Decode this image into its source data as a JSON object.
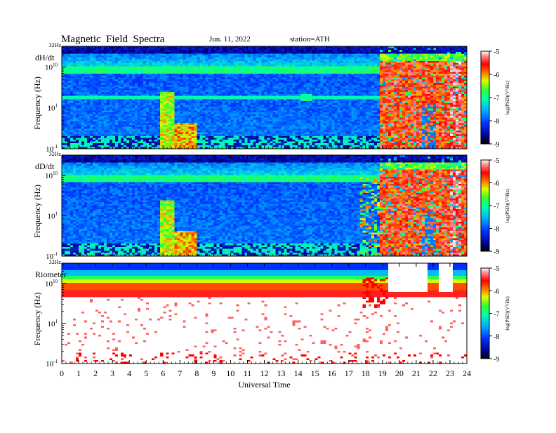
{
  "header": {
    "title": "Magnetic  Field  Spectra",
    "date": "Jun. 11, 2022",
    "station": "station=ATH"
  },
  "colors": {
    "background": "#ffffff",
    "axis": "#000000"
  },
  "chart_data": [
    {
      "type": "heatmap",
      "title": "dH/dt",
      "ylabel": "Frequency (Hz)",
      "xlabel": "",
      "xlim": [
        0,
        24
      ],
      "ylim_hz": [
        0.1,
        32
      ],
      "y_scale": "log",
      "y_top_label": "32Hz",
      "y_tick_labels": [
        "10",
        "1",
        "-1"
      ],
      "colorbar": {
        "label": "log(PSD)(V²/Hz)",
        "range": [
          -9,
          -5
        ],
        "ticks": [
          "-5",
          "-6",
          "-7",
          "-8",
          "-9"
        ]
      },
      "features": {
        "line_at_hz": 1.0,
        "quiet_to_ut": 18.8,
        "disturbed_from_ut": 18.8
      }
    },
    {
      "type": "heatmap",
      "title": "dD/dt",
      "ylabel": "Frequency (Hz)",
      "xlabel": "",
      "xlim": [
        0,
        24
      ],
      "ylim_hz": [
        0.1,
        32
      ],
      "y_scale": "log",
      "y_top_label": "32Hz",
      "y_tick_labels": [
        "10",
        "1",
        "-1"
      ],
      "colorbar": {
        "label": "log(PSD)(V²/Hz)",
        "range": [
          -9,
          -5
        ],
        "ticks": [
          "-5",
          "-6",
          "-7",
          "-8",
          "-9"
        ]
      },
      "features": {
        "quiet_to_ut": 18.8,
        "disturbed_from_ut": 18.8
      }
    },
    {
      "type": "heatmap",
      "title": "Riometer",
      "ylabel": "Frequency (Hz)",
      "xlabel": "Universal Time",
      "xlim": [
        0,
        24
      ],
      "ylim_hz": [
        0.1,
        32
      ],
      "y_scale": "log",
      "y_top_label": "32Hz",
      "y_tick_labels": [
        "10",
        "1",
        "-1"
      ],
      "x_tick_labels": [
        "0",
        "1",
        "2",
        "3",
        "4",
        "5",
        "6",
        "7",
        "8",
        "9",
        "10",
        "11",
        "12",
        "13",
        "14",
        "15",
        "16",
        "17",
        "18",
        "19",
        "20",
        "21",
        "22",
        "23",
        "24"
      ],
      "colorbar": {
        "label": "log(PSD)(V²/Hz)",
        "range": [
          -9,
          -5
        ],
        "ticks": [
          "-5",
          "-6",
          "-7",
          "-8",
          "-9"
        ]
      },
      "features": {
        "disturbed_from_ut": 17.8
      }
    }
  ]
}
